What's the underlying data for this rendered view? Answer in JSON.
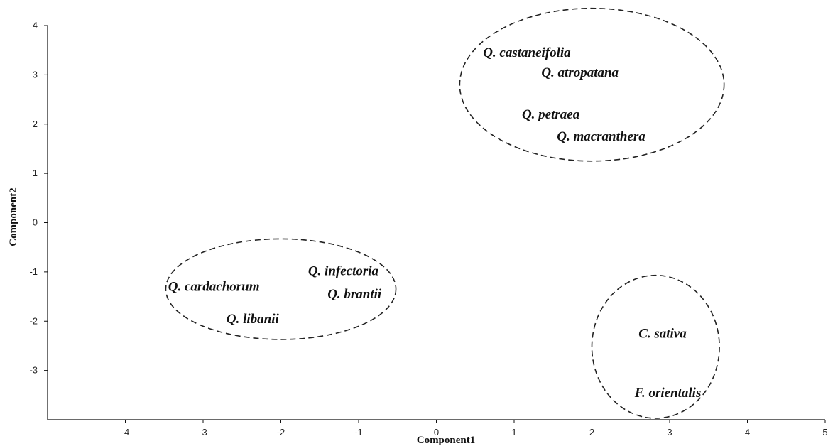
{
  "chart_data": {
    "type": "scatter",
    "xlabel": "Component1",
    "ylabel": "Component2",
    "xlim": [
      -5,
      5
    ],
    "ylim": [
      -4,
      4
    ],
    "xticks": [
      -4,
      -3,
      -2,
      -1,
      0,
      1,
      2,
      3,
      4,
      5
    ],
    "yticks": [
      -3,
      -2,
      -1,
      0,
      1,
      2,
      3,
      4
    ],
    "grid": false,
    "points": [
      {
        "label": "Q. castaneifolia",
        "x": 0.6,
        "y": 3.45
      },
      {
        "label": "Q. atropatana",
        "x": 1.35,
        "y": 3.05
      },
      {
        "label": "Q. petraea",
        "x": 1.1,
        "y": 2.2
      },
      {
        "label": "Q. macranthera",
        "x": 1.55,
        "y": 1.75
      },
      {
        "label": "Q. cardachorum",
        "x": -3.45,
        "y": -1.3
      },
      {
        "label": "Q. infectoria",
        "x": -1.65,
        "y": -0.98
      },
      {
        "label": "Q. brantii",
        "x": -1.4,
        "y": -1.45
      },
      {
        "label": "Q. libanii",
        "x": -2.7,
        "y": -1.95
      },
      {
        "label": "C. sativa",
        "x": 2.6,
        "y": -2.25
      },
      {
        "label": "F. orientalis",
        "x": 2.55,
        "y": -3.45
      }
    ],
    "clusters": [
      {
        "cx": 2.0,
        "cy": 2.8,
        "rx": 1.7,
        "ry": 1.55
      },
      {
        "cx": -2.0,
        "cy": -1.35,
        "rx": 1.48,
        "ry": 1.02
      },
      {
        "cx": 2.82,
        "cy": -2.52,
        "rx": 0.82,
        "ry": 1.45
      }
    ]
  }
}
